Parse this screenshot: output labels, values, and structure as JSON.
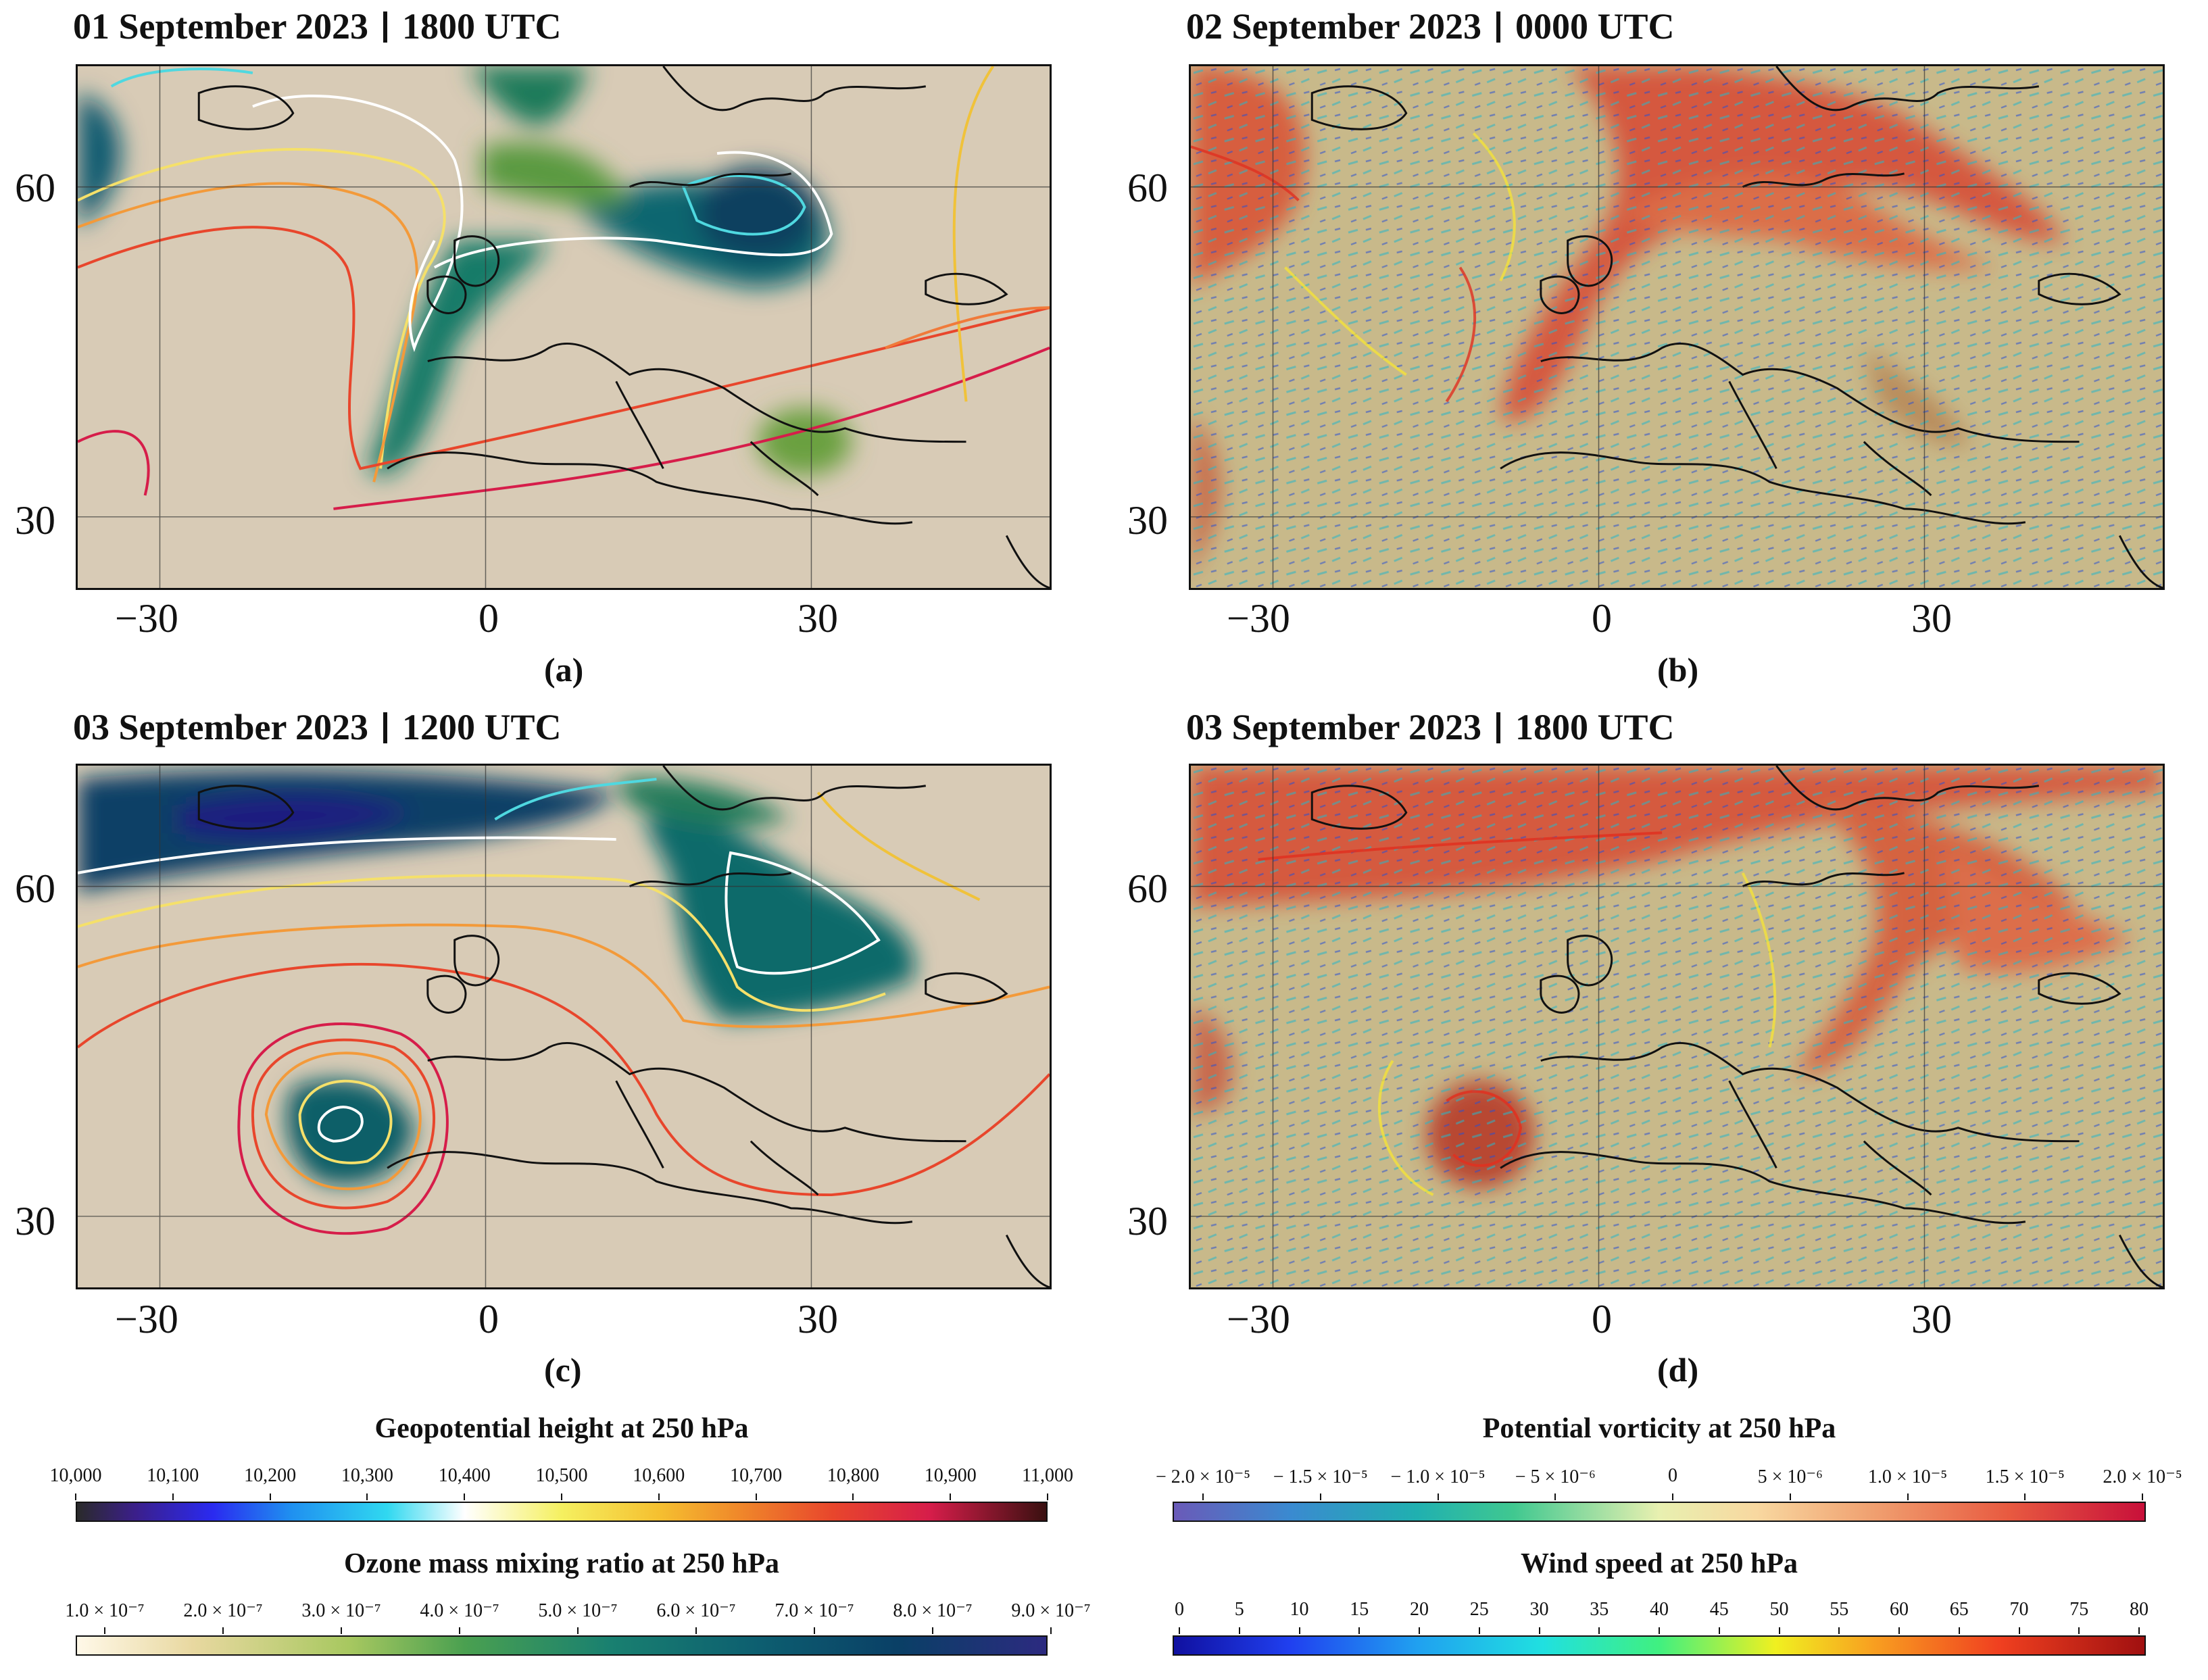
{
  "panels": [
    {
      "id": "a",
      "title_date": "01 September 2023",
      "title_time": "1800 UTC",
      "label": "(a)",
      "field": "ozone",
      "overlay": "geopotential"
    },
    {
      "id": "b",
      "title_date": "02 September 2023",
      "title_time": "0000 UTC",
      "label": "(b)",
      "field": "pv",
      "overlay": "wind"
    },
    {
      "id": "c",
      "title_date": "03 September 2023",
      "title_time": "1200 UTC",
      "label": "(c)",
      "field": "ozone",
      "overlay": "geopotential"
    },
    {
      "id": "d",
      "title_date": "03 September 2023",
      "title_time": "1800 UTC",
      "label": "(d)",
      "field": "pv",
      "overlay": "wind"
    }
  ],
  "axes": {
    "x_ticks": [
      "−30",
      "0",
      "30"
    ],
    "y_ticks": [
      "60",
      "30"
    ]
  },
  "colorbars": {
    "geopotential": {
      "title": "Geopotential height at 250 hPa",
      "ticks": [
        "10,000",
        "10,100",
        "10,200",
        "10,300",
        "10,400",
        "10,500",
        "10,600",
        "10,700",
        "10,800",
        "10,900",
        "11,000"
      ]
    },
    "ozone": {
      "title": "Ozone mass mixing ratio at 250 hPa",
      "ticks": [
        "1.0 × 10⁻⁷",
        "2.0 × 10⁻⁷",
        "3.0 × 10⁻⁷",
        "4.0 × 10⁻⁷",
        "5.0 × 10⁻⁷",
        "6.0 × 10⁻⁷",
        "7.0 × 10⁻⁷",
        "8.0 × 10⁻⁷",
        "9.0 × 10⁻⁷"
      ]
    },
    "pv": {
      "title": "Potential vorticity at 250 hPa",
      "ticks": [
        "− 2.0 × 10⁻⁵",
        "− 1.5 × 10⁻⁵",
        "− 1.0 × 10⁻⁵",
        "− 5 × 10⁻⁶",
        "0",
        "5 × 10⁻⁶",
        "1.0 × 10⁻⁵",
        "1.5 × 10⁻⁵",
        "2.0 × 10⁻⁵"
      ]
    },
    "wind": {
      "title": "Wind speed at 250 hPa",
      "ticks": [
        "0",
        "5",
        "10",
        "15",
        "20",
        "25",
        "30",
        "35",
        "40",
        "45",
        "50",
        "55",
        "60",
        "65",
        "70",
        "75",
        "80"
      ]
    }
  },
  "colors": {
    "ozone_bg": "#d9cdb8",
    "ozone_high": "#0a4f66",
    "pv_bg": "#c9b98a",
    "pv_high": "#d8553a"
  }
}
